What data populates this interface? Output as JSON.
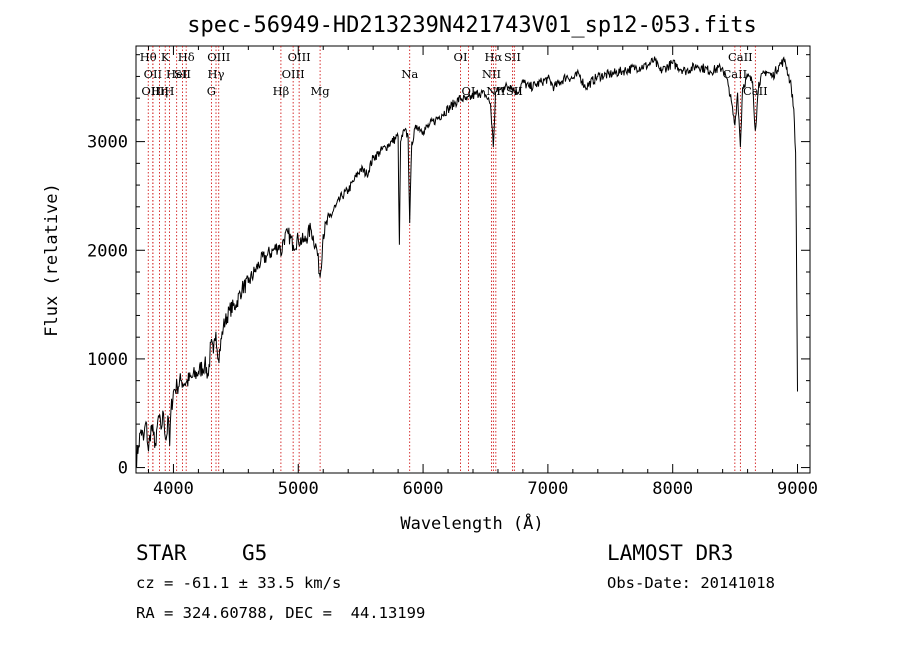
{
  "chart_data": {
    "type": "line",
    "title": "spec-56949-HD213239N421743V01_sp12-053.fits",
    "xlabel": "Wavelength (Å)",
    "ylabel": "Flux (relative)",
    "xlim": [
      3700,
      9100
    ],
    "ylim": [
      -50,
      3880
    ],
    "x_ticks": [
      4000,
      5000,
      6000,
      7000,
      8000,
      9000
    ],
    "y_ticks": [
      0,
      1000,
      2000,
      3000
    ],
    "series": [
      {
        "name": "flux",
        "x": [
          3700,
          3720,
          3740,
          3760,
          3780,
          3800,
          3820,
          3840,
          3860,
          3880,
          3900,
          3920,
          3940,
          3960,
          3970,
          3980,
          4000,
          4030,
          4060,
          4100,
          4150,
          4200,
          4250,
          4280,
          4300,
          4320,
          4340,
          4360,
          4400,
          4450,
          4500,
          4550,
          4600,
          4650,
          4700,
          4750,
          4800,
          4850,
          4861,
          4880,
          4920,
          4960,
          5000,
          5050,
          5100,
          5150,
          5175,
          5200,
          5250,
          5300,
          5350,
          5400,
          5450,
          5500,
          5550,
          5600,
          5650,
          5700,
          5750,
          5800,
          5810,
          5820,
          5850,
          5880,
          5893,
          5910,
          5950,
          6000,
          6050,
          6100,
          6150,
          6200,
          6250,
          6300,
          6350,
          6400,
          6450,
          6500,
          6540,
          6563,
          6580,
          6620,
          6650,
          6700,
          6750,
          6800,
          6850,
          6900,
          6950,
          7000,
          7050,
          7100,
          7150,
          7200,
          7250,
          7300,
          7400,
          7500,
          7600,
          7700,
          7800,
          7850,
          7900,
          8000,
          8100,
          8200,
          8300,
          8400,
          8450,
          8498,
          8520,
          8542,
          8560,
          8600,
          8640,
          8662,
          8690,
          8750,
          8800,
          8850,
          8900,
          8950,
          8970,
          8985,
          9000
        ],
        "y": [
          60,
          200,
          350,
          250,
          420,
          150,
          380,
          300,
          200,
          480,
          350,
          500,
          250,
          450,
          200,
          520,
          700,
          750,
          800,
          780,
          830,
          880,
          950,
          850,
          1150,
          1050,
          1250,
          1000,
          1300,
          1450,
          1500,
          1650,
          1700,
          1800,
          1900,
          1950,
          2000,
          2050,
          1950,
          2100,
          2150,
          2050,
          2100,
          2080,
          2200,
          2000,
          1750,
          2150,
          2300,
          2400,
          2500,
          2550,
          2650,
          2750,
          2700,
          2850,
          2900,
          2950,
          3000,
          3050,
          2050,
          3000,
          3100,
          3050,
          2250,
          3000,
          3150,
          3100,
          3150,
          3200,
          3250,
          3300,
          3350,
          3400,
          3380,
          3420,
          3450,
          3430,
          3350,
          2950,
          3450,
          3480,
          3500,
          3520,
          3450,
          3550,
          3500,
          3520,
          3550,
          3580,
          3500,
          3550,
          3600,
          3580,
          3620,
          3500,
          3600,
          3620,
          3650,
          3680,
          3700,
          3750,
          3650,
          3720,
          3650,
          3700,
          3650,
          3680,
          3500,
          3150,
          3450,
          2950,
          3500,
          3600,
          3550,
          3100,
          3550,
          3650,
          3600,
          3700,
          3750,
          3500,
          3300,
          2900,
          700
        ]
      }
    ],
    "line_markers": [
      {
        "x": 3798,
        "label": "Hθ",
        "row": 1
      },
      {
        "x": 3835,
        "label": "OII",
        "row": 2
      },
      {
        "x": 3835,
        "label": "OIII",
        "row": 3
      },
      {
        "x": 3889,
        "label": "Hη",
        "row": 3
      },
      {
        "x": 3934,
        "label": "K",
        "row": 1
      },
      {
        "x": 3968,
        "label": "H",
        "row": 3
      },
      {
        "x": 4026,
        "label": "HeI",
        "row": 2
      },
      {
        "x": 4072,
        "label": "SII",
        "row": 2
      },
      {
        "x": 4102,
        "label": "Hδ",
        "row": 1
      },
      {
        "x": 4304,
        "label": "G",
        "row": 3
      },
      {
        "x": 4341,
        "label": "Hγ",
        "row": 2
      },
      {
        "x": 4363,
        "label": "OIII",
        "row": 1
      },
      {
        "x": 4861,
        "label": "Hβ",
        "row": 3
      },
      {
        "x": 4959,
        "label": "OIII",
        "row": 2
      },
      {
        "x": 5007,
        "label": "OIII",
        "row": 1
      },
      {
        "x": 5175,
        "label": "Mg",
        "row": 3
      },
      {
        "x": 5893,
        "label": "Na",
        "row": 2
      },
      {
        "x": 6300,
        "label": "OI",
        "row": 1
      },
      {
        "x": 6364,
        "label": "OI",
        "row": 3
      },
      {
        "x": 6548,
        "label": "NII",
        "row": 2
      },
      {
        "x": 6563,
        "label": "Hα",
        "row": 1
      },
      {
        "x": 6583,
        "label": "NII",
        "row": 3
      },
      {
        "x": 6716,
        "label": "SII",
        "row": 1
      },
      {
        "x": 6731,
        "label": "SII",
        "row": 3
      },
      {
        "x": 8498,
        "label": "CaII",
        "row": 2
      },
      {
        "x": 8542,
        "label": "CaII",
        "row": 1
      },
      {
        "x": 8662,
        "label": "CaII",
        "row": 3
      }
    ]
  },
  "info": {
    "object_class": "STAR",
    "subclass": "G5",
    "survey": "LAMOST DR3",
    "redshift": "cz = -61.1 ± 33.5 km/s",
    "obs_date": "Obs-Date: 20141018",
    "coords": "RA = 324.60788, DEC =  44.13199"
  }
}
